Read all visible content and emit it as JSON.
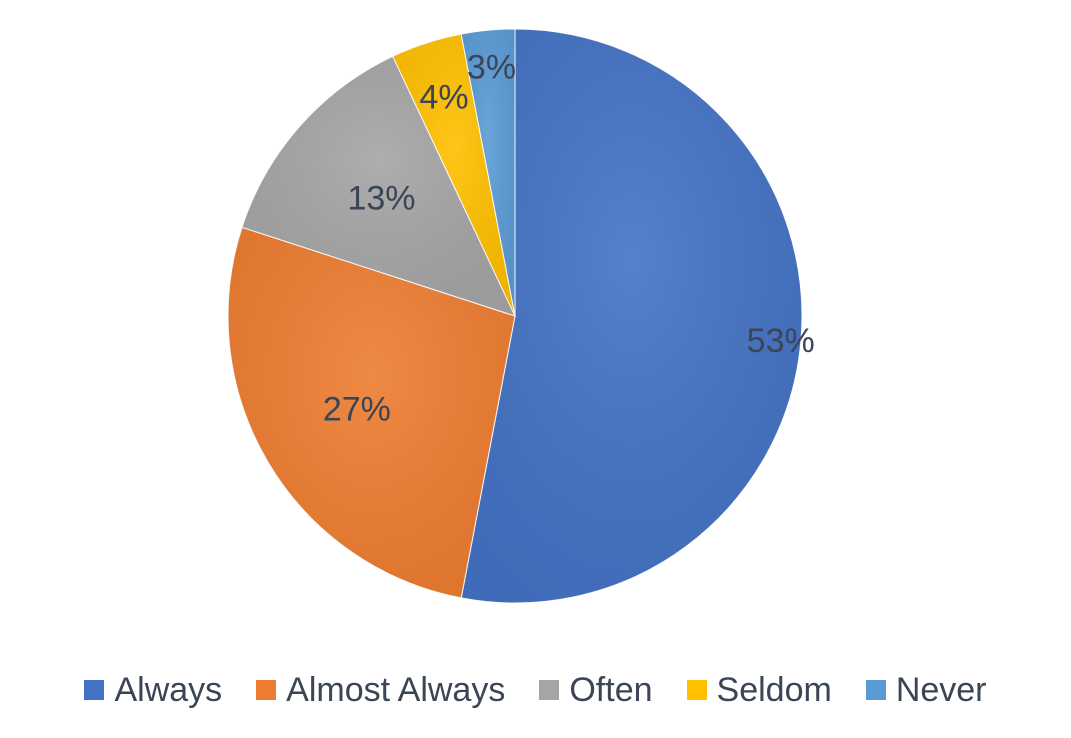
{
  "chart_data": {
    "type": "pie",
    "title": "",
    "categories": [
      "Always",
      "Almost Always",
      "Often",
      "Seldom",
      "Never"
    ],
    "values": [
      53,
      27,
      13,
      4,
      3
    ],
    "labels": [
      "53%",
      "27%",
      "13%",
      "4%",
      "3%"
    ],
    "colors": [
      "#4472c4",
      "#ed7d31",
      "#a5a5a5",
      "#ffc000",
      "#5b9bd5"
    ],
    "legend_position": "bottom",
    "start_angle_deg": 0,
    "direction": "clockwise"
  },
  "legend": {
    "items": [
      {
        "label": "Always",
        "color": "#4472c4"
      },
      {
        "label": "Almost Always",
        "color": "#ed7d31"
      },
      {
        "label": "Often",
        "color": "#a5a5a5"
      },
      {
        "label": "Seldom",
        "color": "#ffc000"
      },
      {
        "label": "Never",
        "color": "#5b9bd5"
      }
    ]
  }
}
